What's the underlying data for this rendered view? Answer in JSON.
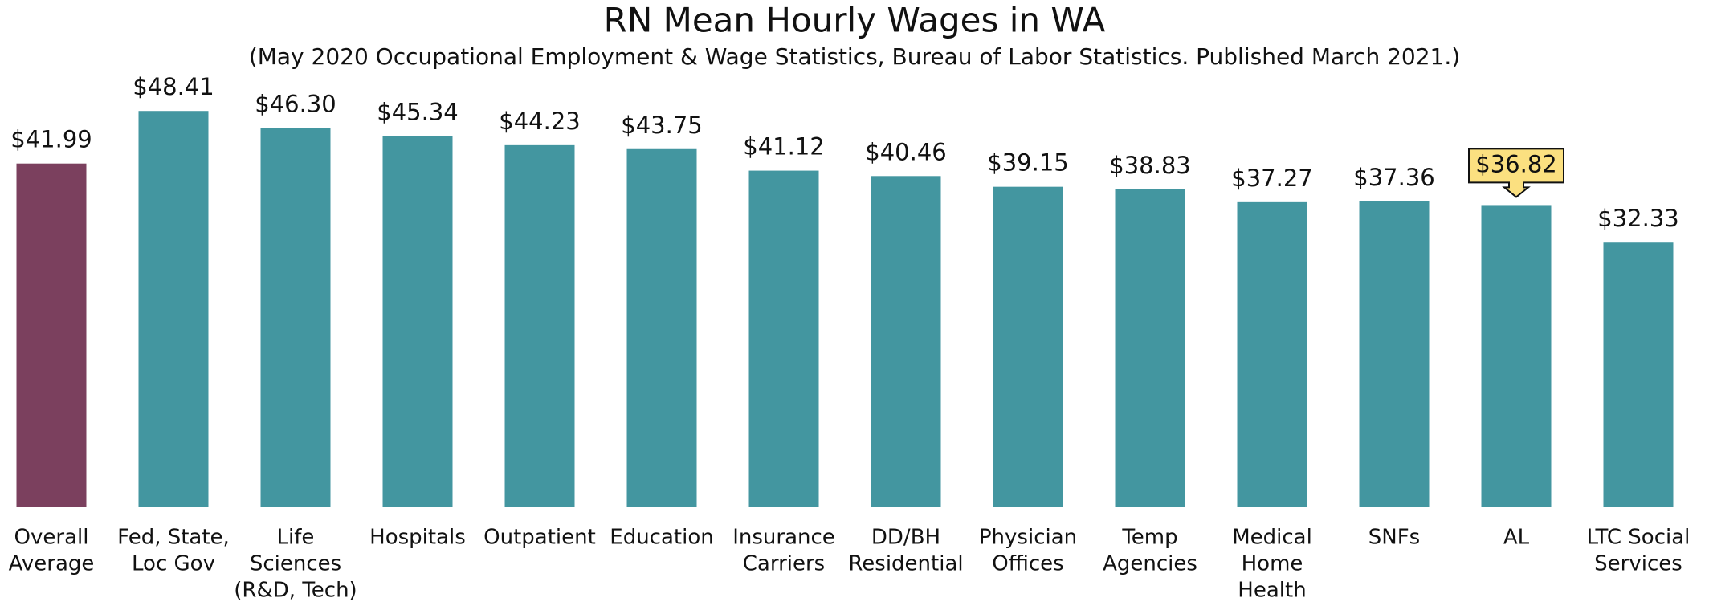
{
  "chart_data": {
    "type": "bar",
    "title": "RN Mean Hourly Wages in WA",
    "subtitle": "(May 2020 Occupational Employment & Wage Statistics, Bureau of Labor Statistics. Published March 2021.)",
    "categories": [
      [
        "Overall",
        "Average"
      ],
      [
        "Fed, State,",
        "Loc Gov"
      ],
      [
        "Life",
        "Sciences",
        "(R&D, Tech)"
      ],
      [
        "Hospitals"
      ],
      [
        "Outpatient"
      ],
      [
        "Education"
      ],
      [
        "Insurance",
        "Carriers"
      ],
      [
        "DD/BH",
        "Residential"
      ],
      [
        "Physician",
        "Offices"
      ],
      [
        "Temp",
        "Agencies"
      ],
      [
        "Medical",
        "Home",
        "Health"
      ],
      [
        "SNFs"
      ],
      [
        "AL"
      ],
      [
        "LTC Social",
        "Services"
      ]
    ],
    "values": [
      41.99,
      48.41,
      46.3,
      45.34,
      44.23,
      43.75,
      41.12,
      40.46,
      39.15,
      38.83,
      37.27,
      37.36,
      36.82,
      32.33
    ],
    "value_labels": [
      "$41.99",
      "$48.41",
      "$46.30",
      "$45.34",
      "$44.23",
      "$43.75",
      "$41.12",
      "$40.46",
      "$39.15",
      "$38.83",
      "$37.27",
      "$37.36",
      "$36.82",
      "$32.33"
    ],
    "colors": [
      "#7b405e",
      "#4396a0",
      "#4396a0",
      "#4396a0",
      "#4396a0",
      "#4396a0",
      "#4396a0",
      "#4396a0",
      "#4396a0",
      "#4396a0",
      "#4396a0",
      "#4396a0",
      "#4396a0",
      "#4396a0"
    ],
    "label_backgrounds": [
      null,
      null,
      null,
      null,
      null,
      null,
      null,
      null,
      null,
      null,
      null,
      null,
      "#fbe080",
      null
    ],
    "ylim": [
      0,
      50
    ]
  }
}
